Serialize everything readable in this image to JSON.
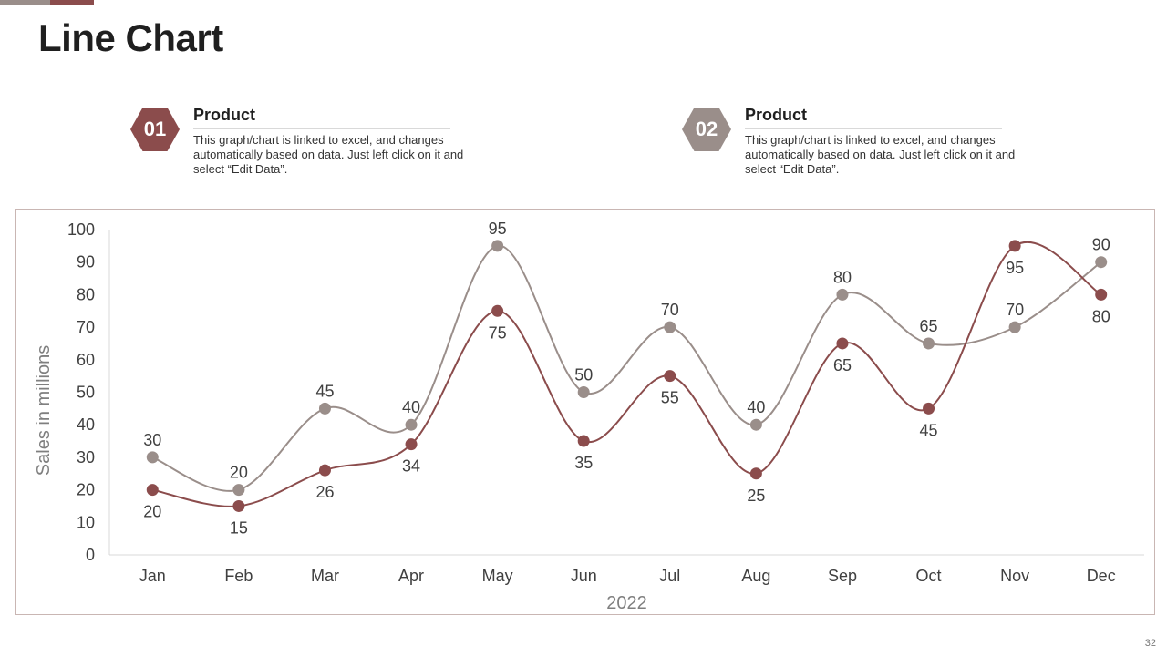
{
  "title": "Line Chart",
  "page_number": "32",
  "legend": [
    {
      "badge": "01",
      "heading": "Product",
      "desc": "This graph/chart is linked to excel,  and changes automatically based on data. Just  left click  on it and select “Edit Data”."
    },
    {
      "badge": "02",
      "heading": "Product",
      "desc": "This graph/chart is linked to excel,  and changes automatically based on data. Just  left click  on it and select “Edit Data”."
    }
  ],
  "colors": {
    "series1": "#8b4c4c",
    "series2": "#9a8e8a",
    "accent1": "#8b4c4c",
    "accent2": "#9a8e8a",
    "axis_text": "#404040",
    "axis_line": "#d9d9d9"
  },
  "chart_data": {
    "type": "line",
    "smooth": true,
    "title": "",
    "xlabel": "2022",
    "ylabel": "Sales in millions",
    "ylim": [
      0,
      100
    ],
    "yticks": [
      0,
      10,
      20,
      30,
      40,
      50,
      60,
      70,
      80,
      90,
      100
    ],
    "grid": false,
    "categories": [
      "Jan",
      "Feb",
      "Mar",
      "Apr",
      "May",
      "Jun",
      "Jul",
      "Aug",
      "Sep",
      "Oct",
      "Nov",
      "Dec"
    ],
    "series": [
      {
        "name": "Product 01",
        "color": "#8b4c4c",
        "values": [
          20,
          15,
          26,
          34,
          75,
          35,
          55,
          25,
          65,
          45,
          95,
          80
        ],
        "label_position": [
          "below",
          "below",
          "below",
          "below",
          "below",
          "below",
          "below",
          "below",
          "below",
          "below",
          "below",
          "below"
        ]
      },
      {
        "name": "Product 02",
        "color": "#9a8e8a",
        "values": [
          30,
          20,
          45,
          40,
          95,
          50,
          70,
          40,
          80,
          65,
          70,
          90
        ],
        "label_position": [
          "above",
          "above",
          "above",
          "above",
          "above",
          "above",
          "above",
          "above",
          "above",
          "above",
          "above",
          "above"
        ]
      }
    ]
  }
}
